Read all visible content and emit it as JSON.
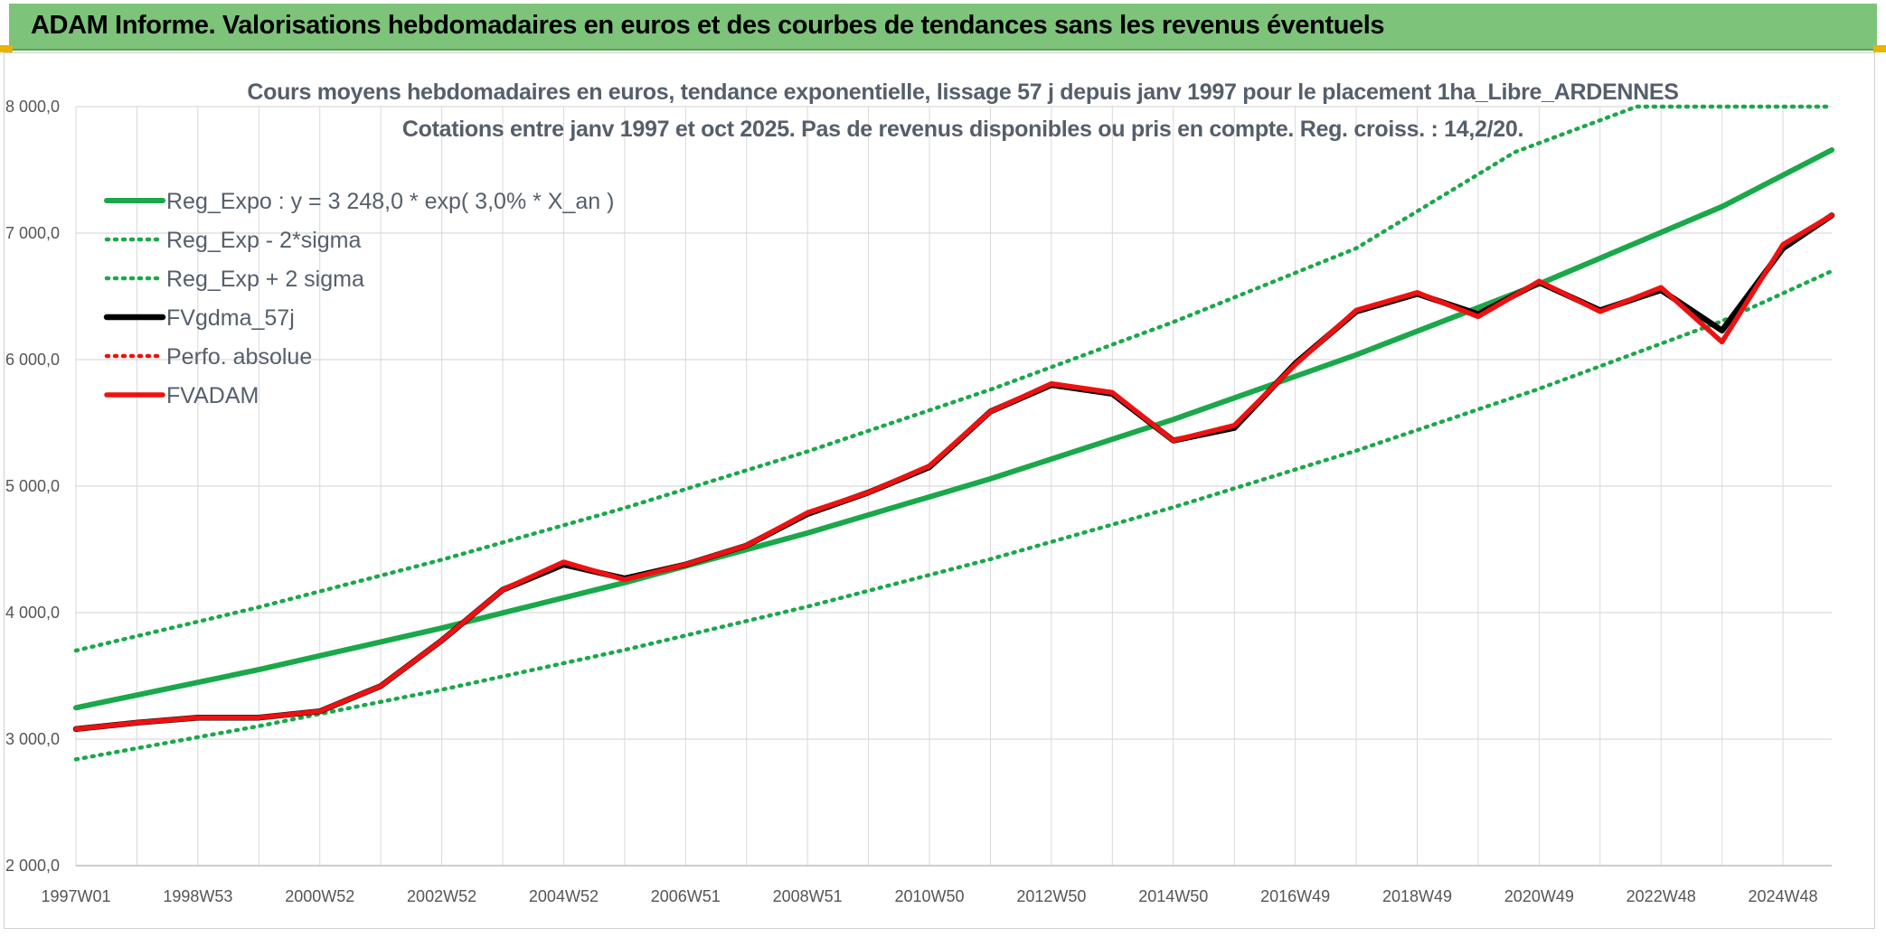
{
  "banner": {
    "title": "ADAM Informe. Valorisations hebdomadaires en euros et des courbes de tendances sans les revenus éventuels"
  },
  "colors": {
    "banner_bg": "#7dc47a",
    "green": "#1aa84a",
    "red": "#ee1111",
    "black": "#000000",
    "grid": "#d9d9d9"
  },
  "chart_data": {
    "type": "line",
    "title": "Cours moyens hebdomadaires en euros, tendance exponentielle, lissage 57 j depuis janv 1997 pour le placement 1ha_Libre_ARDENNES",
    "subtitle": "Cotations entre janv 1997 et oct 2025. Pas de revenus disponibles ou pris en compte. Reg. croiss. : 14,2/20.",
    "xlabel": "",
    "ylabel": "",
    "xlim": [
      1997.0,
      2025.8
    ],
    "ylim": [
      2000,
      8000
    ],
    "yticks": [
      {
        "value": 2000,
        "label": "2 000,0"
      },
      {
        "value": 3000,
        "label": "3 000,0"
      },
      {
        "value": 4000,
        "label": "4 000,0"
      },
      {
        "value": 5000,
        "label": "5 000,0"
      },
      {
        "value": 6000,
        "label": "6 000,0"
      },
      {
        "value": 7000,
        "label": "7 000,0"
      },
      {
        "value": 8000,
        "label": "8 000,0"
      }
    ],
    "xticks": [
      {
        "value": 1997.0,
        "label": "1997W01"
      },
      {
        "value": 1999.0,
        "label": "1998W53"
      },
      {
        "value": 2001.0,
        "label": "2000W52"
      },
      {
        "value": 2003.0,
        "label": "2002W52"
      },
      {
        "value": 2005.0,
        "label": "2004W52"
      },
      {
        "value": 2007.0,
        "label": "2006W51"
      },
      {
        "value": 2009.0,
        "label": "2008W51"
      },
      {
        "value": 2011.0,
        "label": "2010W50"
      },
      {
        "value": 2013.0,
        "label": "2012W50"
      },
      {
        "value": 2015.0,
        "label": "2014W50"
      },
      {
        "value": 2017.0,
        "label": "2016W49"
      },
      {
        "value": 2019.0,
        "label": "2018W49"
      },
      {
        "value": 2021.0,
        "label": "2020W49"
      },
      {
        "value": 2023.0,
        "label": "2022W48"
      },
      {
        "value": 2025.0,
        "label": "2024W48"
      }
    ],
    "minor_grid_step": 1,
    "grid": true,
    "legend_position": "top-left",
    "series": [
      {
        "name": "Reg_Expo : y = 3 248,0 * exp( 3,0% *  X_an )",
        "style": "solid",
        "color": "#1aa84a",
        "x": [
          1997.0,
          2000.0,
          2003.0,
          2006.0,
          2009.0,
          2012.0,
          2015.0,
          2018.0,
          2021.0,
          2024.0,
          2025.8
        ],
        "values": [
          3248,
          3549,
          3878,
          4237,
          4629,
          5058,
          5527,
          6038,
          6598,
          7209,
          7657
        ]
      },
      {
        "name": "Reg_Exp - 2*sigma",
        "style": "dotted",
        "color": "#1aa84a",
        "x": [
          1997.0,
          2000.0,
          2003.0,
          2006.0,
          2009.0,
          2012.0,
          2015.0,
          2018.0,
          2021.0,
          2024.0,
          2025.8
        ],
        "values": [
          2840,
          3103,
          3391,
          3705,
          4048,
          4423,
          4833,
          5280,
          5769,
          6304,
          6700
        ]
      },
      {
        "name": "Reg_Exp + 2 sigma",
        "style": "dotted",
        "color": "#1aa84a",
        "x": [
          1997.0,
          2000.0,
          2003.0,
          2006.0,
          2009.0,
          2012.0,
          2015.0,
          2018.0,
          2020.6,
          2022.6,
          2025.8
        ],
        "values": [
          3700,
          4043,
          4418,
          4827,
          5274,
          5763,
          6297,
          6880,
          7640,
          8000,
          8000
        ]
      },
      {
        "name": "FVgdma_57j",
        "style": "solid",
        "color": "#000000",
        "x": [
          1997.0,
          1998.0,
          1999.0,
          2000.0,
          2001.0,
          2002.0,
          2003.0,
          2004.0,
          2005.0,
          2006.0,
          2007.0,
          2008.0,
          2009.0,
          2010.0,
          2011.0,
          2012.0,
          2013.0,
          2014.0,
          2015.0,
          2016.0,
          2017.0,
          2018.0,
          2019.0,
          2020.0,
          2021.0,
          2022.0,
          2023.0,
          2024.0,
          2025.0,
          2025.8
        ],
        "values": [
          3080,
          3130,
          3170,
          3170,
          3220,
          3420,
          3780,
          4180,
          4380,
          4270,
          4380,
          4530,
          4780,
          4950,
          5150,
          5590,
          5800,
          5730,
          5360,
          5460,
          5970,
          6380,
          6520,
          6360,
          6610,
          6390,
          6550,
          6230,
          6880,
          7140
        ]
      },
      {
        "name": "Perfo. absolue",
        "style": "dotted",
        "color": "#ee1111",
        "x": [],
        "values": []
      },
      {
        "name": "FVADAM",
        "style": "solid",
        "color": "#ee1111",
        "x": [
          1997.0,
          1998.0,
          1999.0,
          2000.0,
          2001.0,
          2002.0,
          2003.0,
          2004.0,
          2005.0,
          2006.0,
          2007.0,
          2008.0,
          2009.0,
          2010.0,
          2011.0,
          2012.0,
          2013.0,
          2014.0,
          2015.0,
          2016.0,
          2017.0,
          2018.0,
          2019.0,
          2020.0,
          2021.0,
          2022.0,
          2023.0,
          2024.0,
          2025.0,
          2025.8
        ],
        "values": [
          3080,
          3130,
          3170,
          3170,
          3220,
          3420,
          3780,
          4180,
          4400,
          4260,
          4380,
          4530,
          4790,
          4950,
          5160,
          5590,
          5810,
          5740,
          5360,
          5480,
          5960,
          6390,
          6530,
          6340,
          6620,
          6380,
          6570,
          6140,
          6910,
          7140
        ]
      }
    ]
  }
}
